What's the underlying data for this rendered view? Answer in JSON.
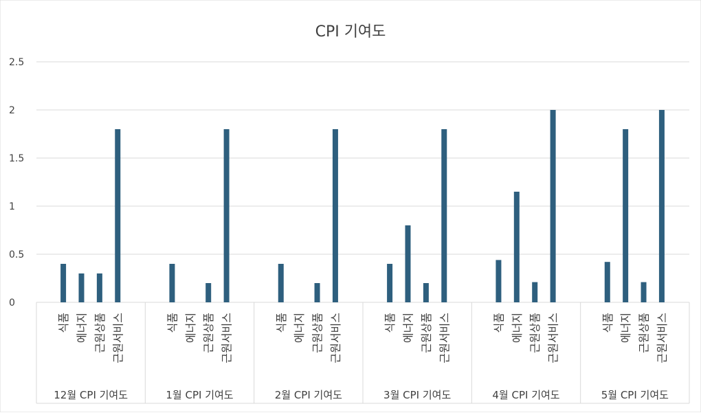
{
  "chart_data": {
    "type": "bar",
    "title": "CPI 기여도",
    "xlabel": "",
    "ylabel": "",
    "ylim": [
      0,
      2.5
    ],
    "y_ticks": [
      0,
      0.5,
      1,
      1.5,
      2,
      2.5
    ],
    "y_tick_labels": [
      "0",
      "0.5",
      "1",
      "1.5",
      "2",
      "2.5"
    ],
    "grid": true,
    "legend": "none",
    "bar_color": "#2E5F7E",
    "categories": [
      "식품",
      "에너지",
      "근원상품",
      "근원서비스"
    ],
    "groups": [
      {
        "label": "12월 CPI 기여도",
        "values": [
          0.4,
          0.3,
          0.3,
          1.8
        ]
      },
      {
        "label": "1월 CPI 기여도",
        "values": [
          0.4,
          0,
          0.2,
          1.8
        ]
      },
      {
        "label": "2월 CPI 기여도",
        "values": [
          0.4,
          0,
          0.2,
          1.8
        ]
      },
      {
        "label": "3월 CPI 기여도",
        "values": [
          0.4,
          0.8,
          0.2,
          1.8
        ]
      },
      {
        "label": "4월 CPI 기여도",
        "values": [
          0.44,
          1.15,
          0.21,
          2.0
        ]
      },
      {
        "label": "5월 CPI 기여도",
        "values": [
          0.42,
          1.8,
          0.21,
          2.0
        ]
      }
    ]
  }
}
